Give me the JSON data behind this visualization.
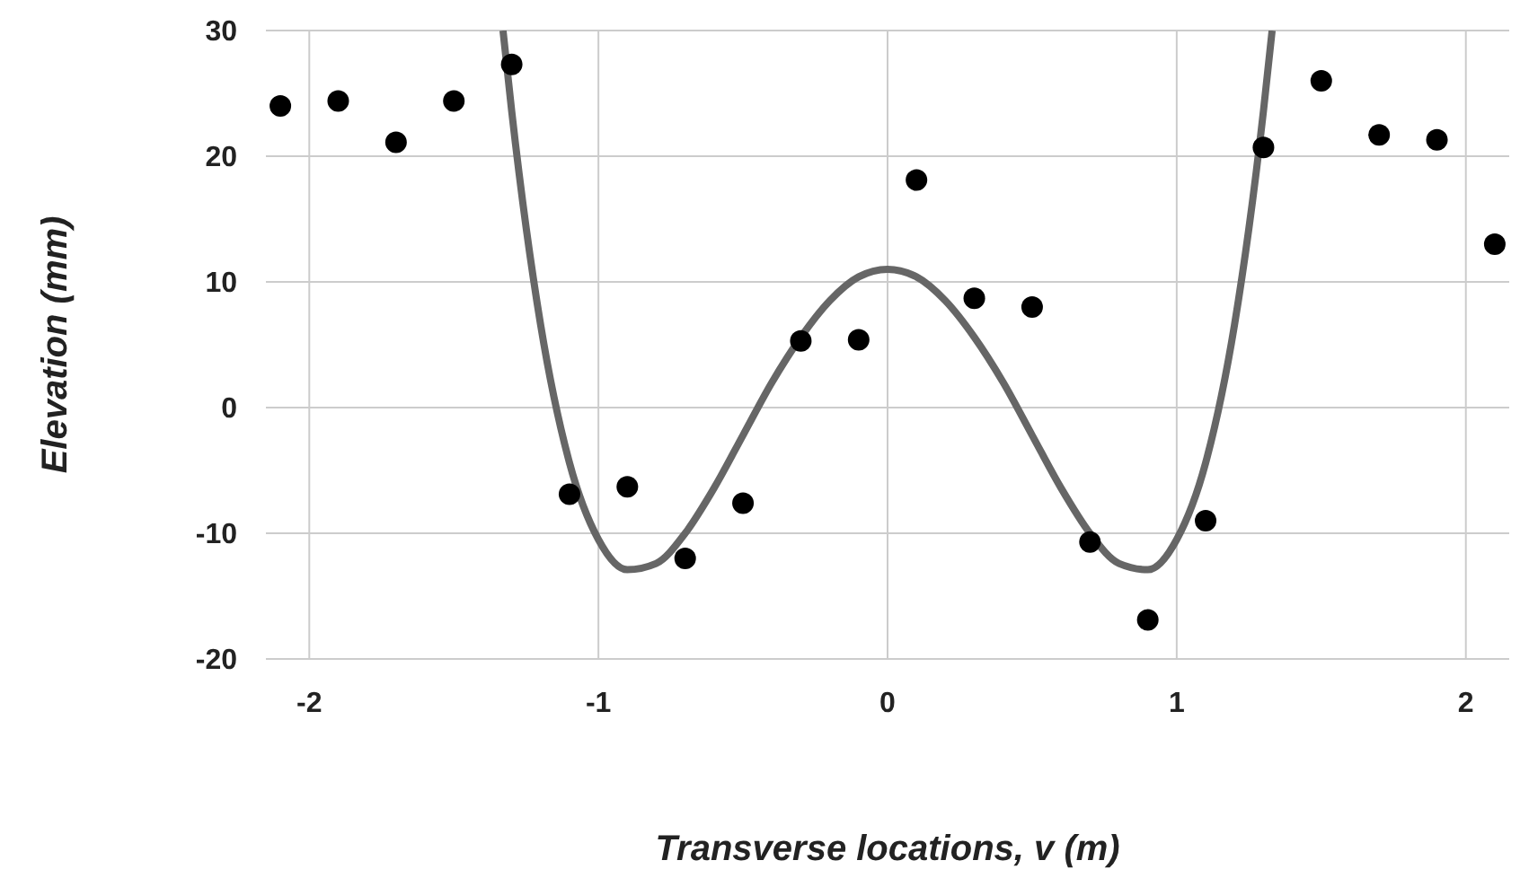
{
  "chart_data": {
    "type": "scatter",
    "xlabel": "Transverse locations, v (m)",
    "ylabel": "Elevation (mm)",
    "xlim": [
      -2.15,
      2.15
    ],
    "ylim": [
      -20,
      30
    ],
    "xticks": [
      -2,
      -1,
      0,
      1,
      2
    ],
    "yticks": [
      -20,
      -10,
      0,
      10,
      20,
      30
    ],
    "grid": true,
    "legend": false,
    "marker": "circle",
    "series": [
      {
        "color": "#000000",
        "x": [
          -2.1,
          -1.9,
          -1.7,
          -1.5,
          -1.3,
          -1.1,
          -0.9,
          -0.7,
          -0.5,
          -0.3,
          -0.1,
          0.1,
          0.3,
          0.5,
          0.7,
          0.9,
          1.1,
          1.3,
          1.5,
          1.7,
          1.9,
          2.1
        ],
        "values": [
          24,
          24.4,
          21.1,
          24.4,
          27.3,
          -6.9,
          -6.3,
          -12,
          -7.6,
          5.3,
          5.4,
          18.1,
          8.7,
          8,
          -10.7,
          -16.9,
          -9,
          20.7,
          26,
          21.7,
          21.3,
          13
        ]
      },
      {
        "type": "line",
        "color": "#666666",
        "marker": "none",
        "x": [
          -1.33,
          -1.3,
          -1.2,
          -1.1,
          -1.0,
          -0.9,
          -0.8,
          -0.7,
          -0.6,
          -0.5,
          -0.4,
          -0.3,
          -0.2,
          -0.1,
          0,
          0.1,
          0.2,
          0.3,
          0.4,
          0.5,
          0.6,
          0.7,
          0.8,
          0.9,
          1.0,
          1.1,
          1.2,
          1.3,
          1.33
        ],
        "values": [
          30,
          23.6,
          6.6,
          -4.4,
          -10.5,
          -12.9,
          -12.4,
          -10,
          -6.4,
          -2.2,
          2,
          5.6,
          8.5,
          10.4,
          11,
          10.4,
          8.5,
          5.6,
          2,
          -2.2,
          -6.4,
          -10,
          -12.4,
          -12.9,
          -10.5,
          -4.4,
          6.6,
          23.6,
          30
        ]
      }
    ]
  }
}
